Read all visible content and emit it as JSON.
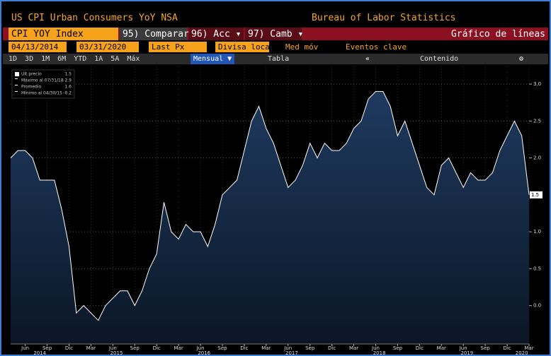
{
  "ui": {
    "title": "US CPI Urban Consumers YoY NSA",
    "source": "Bureau of Labor Statistics",
    "ticker": "CPI YOY Index",
    "buttons": [
      "95) Comparar",
      "96) Acc ▾",
      "97) Camb ▾"
    ],
    "chart_type": "Gráfico de líneas",
    "start_date": "04/13/2014",
    "end_date": "03/31/2020",
    "field": "Last Px",
    "currency": "Divisa loca",
    "moving_average": "Med móv",
    "events": "Eventos clave",
    "periods": [
      "1D",
      "3D",
      "1M",
      "6M",
      "YTD",
      "1A",
      "5A",
      "Máx"
    ],
    "frequency": "Mensual ▼",
    "table": "Tabla",
    "contents": "Contenido"
  },
  "chart_data": {
    "type": "line",
    "legend": [
      {
        "label": "Ult precio",
        "value": "1.5"
      },
      {
        "label": "Máximo al 07/31/18",
        "value": "2.9"
      },
      {
        "label": "Promedio",
        "value": "1.6"
      },
      {
        "label": "Mínimo al 04/30/15",
        "value": "-0.2"
      }
    ],
    "categories": [
      null,
      null,
      "Jun",
      null,
      null,
      "Sep",
      null,
      null,
      "Dic",
      null,
      null,
      "Mar",
      null,
      null,
      "Jun",
      null,
      null,
      "Sep",
      null,
      null,
      "Dic",
      null,
      null,
      "Mar",
      null,
      null,
      "Jun",
      null,
      null,
      "Sep",
      null,
      null,
      "Dic",
      null,
      null,
      "Mar",
      null,
      null,
      "Jun",
      null,
      null,
      "Sep",
      null,
      null,
      "Dic",
      null,
      null,
      "Mar",
      null,
      null,
      "Jun",
      null,
      null,
      "Sep",
      null,
      null,
      "Dic",
      null,
      null,
      "Mar",
      null,
      null,
      "Jun",
      null,
      null,
      "Sep",
      null,
      null,
      "Dic",
      null,
      null,
      "Mar"
    ],
    "years": [
      "2014",
      "2015",
      "2016",
      "2017",
      "2018",
      "2019",
      "2020"
    ],
    "series": [
      {
        "name": "Ult precio",
        "color": "#ffffff",
        "values": [
          2.0,
          2.1,
          2.1,
          2.0,
          1.7,
          1.7,
          1.7,
          1.3,
          0.8,
          -0.1,
          0.0,
          -0.1,
          -0.2,
          0.0,
          0.1,
          0.2,
          0.2,
          0.0,
          0.2,
          0.5,
          0.7,
          1.4,
          1.0,
          0.9,
          1.1,
          1.0,
          1.0,
          0.8,
          1.1,
          1.5,
          1.6,
          1.7,
          2.1,
          2.5,
          2.7,
          2.4,
          2.2,
          1.9,
          1.6,
          1.7,
          1.9,
          2.2,
          2.0,
          2.2,
          2.1,
          2.1,
          2.2,
          2.4,
          2.5,
          2.8,
          2.9,
          2.9,
          2.7,
          2.3,
          2.5,
          2.2,
          1.9,
          1.6,
          1.5,
          1.9,
          2.0,
          1.8,
          1.6,
          1.8,
          1.7,
          1.7,
          1.8,
          2.1,
          2.3,
          2.5,
          2.3,
          1.5
        ]
      }
    ],
    "ylim": [
      -0.52,
      3.24
    ],
    "yticks": [
      {
        "value": 0,
        "label": "0.0"
      },
      {
        "value": 0.5,
        "label": "0.5"
      },
      {
        "value": 1,
        "label": "1.0"
      },
      {
        "value": 2,
        "label": "2.0"
      },
      {
        "value": 2.5,
        "label": "2.5"
      },
      {
        "value": 3,
        "label": "3.0"
      }
    ],
    "grid": true
  }
}
